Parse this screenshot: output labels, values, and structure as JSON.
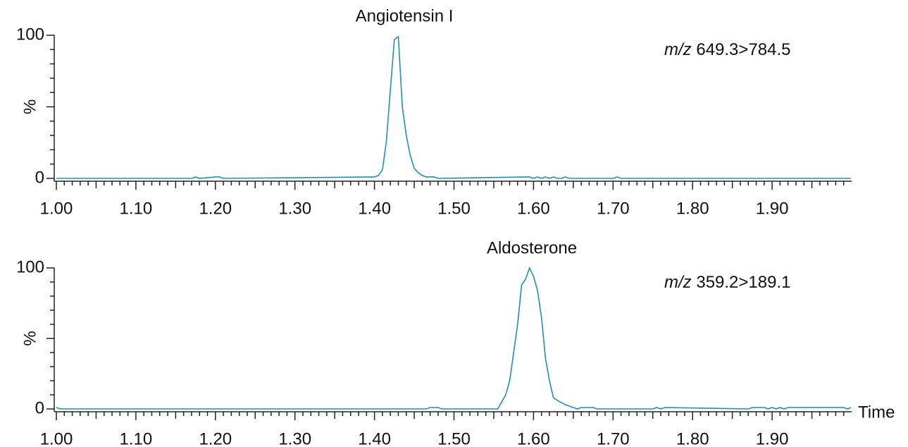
{
  "chart_data": [
    {
      "type": "line",
      "title": "Angiotensin I",
      "mz_prefix": "m/z",
      "transition": "649.3>784.5",
      "ylabel": "%",
      "xlim": [
        1.0,
        2.0
      ],
      "ylim": [
        0,
        100
      ],
      "xticks": [
        {
          "value": 1.0,
          "label": "1.00"
        },
        {
          "value": 1.1,
          "label": "1.10"
        },
        {
          "value": 1.2,
          "label": "1.20"
        },
        {
          "value": 1.3,
          "label": "1.30"
        },
        {
          "value": 1.4,
          "label": "1.40"
        },
        {
          "value": 1.5,
          "label": "1.50"
        },
        {
          "value": 1.6,
          "label": "1.60"
        },
        {
          "value": 1.7,
          "label": "1.70"
        },
        {
          "value": 1.8,
          "label": "1.80"
        },
        {
          "value": 1.9,
          "label": "1.90"
        }
      ],
      "yticks": [
        0,
        100
      ],
      "xminor": 10,
      "yminor": 10,
      "series": [
        {
          "color": "#1f8fb5",
          "x": [
            1.0,
            1.17,
            1.175,
            1.18,
            1.2,
            1.205,
            1.21,
            1.4,
            1.405,
            1.41,
            1.415,
            1.42,
            1.425,
            1.43,
            1.435,
            1.44,
            1.445,
            1.45,
            1.455,
            1.46,
            1.465,
            1.47,
            1.475,
            1.48,
            1.595,
            1.6,
            1.605,
            1.61,
            1.615,
            1.62,
            1.625,
            1.63,
            1.635,
            1.64,
            1.645,
            1.7,
            1.705,
            1.71,
            1.999
          ],
          "values": [
            0,
            0,
            1,
            0,
            1,
            1,
            0,
            1,
            2,
            6,
            26,
            62,
            97,
            99,
            50,
            30,
            16,
            7,
            4,
            2,
            1,
            1,
            1,
            0,
            1,
            0,
            1,
            0,
            1,
            0,
            1,
            0,
            0,
            1,
            0,
            0,
            1,
            0,
            0
          ]
        }
      ]
    },
    {
      "type": "line",
      "title": "Aldosterone",
      "mz_prefix": "m/z",
      "transition": "359.2>189.1",
      "ylabel": "%",
      "xlabel": "Time",
      "xlim": [
        1.0,
        2.0
      ],
      "ylim": [
        0,
        100
      ],
      "xticks": [
        {
          "value": 1.0,
          "label": "1.00"
        },
        {
          "value": 1.1,
          "label": "1.10"
        },
        {
          "value": 1.2,
          "label": "1.20"
        },
        {
          "value": 1.3,
          "label": "1.30"
        },
        {
          "value": 1.4,
          "label": "1.40"
        },
        {
          "value": 1.5,
          "label": "1.50"
        },
        {
          "value": 1.6,
          "label": "1.60"
        },
        {
          "value": 1.7,
          "label": "1.70"
        },
        {
          "value": 1.8,
          "label": "1.80"
        },
        {
          "value": 1.9,
          "label": "1.90"
        }
      ],
      "yticks": [
        0,
        100
      ],
      "xminor": 10,
      "yminor": 10,
      "series": [
        {
          "color": "#1f8fb5",
          "x": [
            1.0,
            1.005,
            1.465,
            1.47,
            1.48,
            1.485,
            1.555,
            1.56,
            1.565,
            1.57,
            1.575,
            1.58,
            1.585,
            1.59,
            1.595,
            1.6,
            1.605,
            1.61,
            1.615,
            1.62,
            1.625,
            1.63,
            1.64,
            1.65,
            1.655,
            1.66,
            1.675,
            1.68,
            1.75,
            1.755,
            1.76,
            1.765,
            1.87,
            1.875,
            1.89,
            1.895,
            1.9,
            1.905,
            1.91,
            1.915,
            1.92,
            1.925,
            1.99,
            1.995,
            1.999
          ],
          "values": [
            1,
            0,
            0,
            1,
            1,
            0,
            0,
            5,
            10,
            20,
            40,
            60,
            88,
            92,
            100,
            94,
            84,
            65,
            36,
            20,
            8,
            6,
            3,
            1,
            0,
            1,
            1,
            0,
            0,
            1,
            0,
            1,
            0,
            1,
            1,
            0,
            1,
            0,
            1,
            0,
            1,
            1,
            1,
            0,
            1
          ]
        }
      ]
    }
  ]
}
